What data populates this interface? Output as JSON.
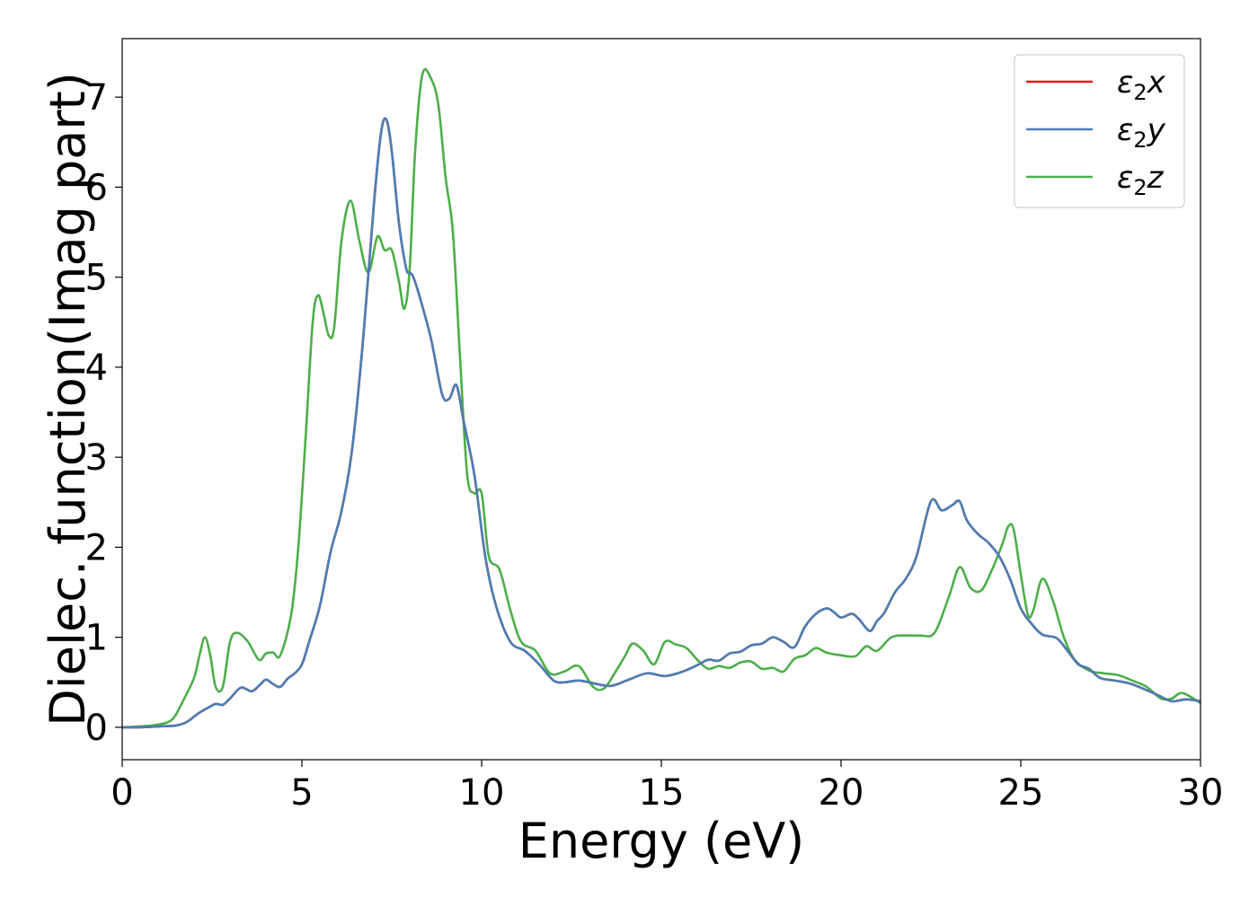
{
  "chart_data": {
    "type": "line",
    "xlabel": "Energy (eV)",
    "ylabel": "Dielec. function(Imag part)",
    "xlim": [
      0,
      30
    ],
    "ylim": [
      -0.36,
      7.65
    ],
    "xticks": [
      0,
      5,
      10,
      15,
      20,
      25,
      30
    ],
    "yticks": [
      0,
      1,
      2,
      3,
      4,
      5,
      6,
      7
    ],
    "grid": false,
    "legend_position": "top-right",
    "series": [
      {
        "name": "ε2x",
        "legend_main": "ε",
        "legend_sub": "2",
        "legend_suffix": "x",
        "color": "#e41a1c",
        "x": [
          0,
          0.5,
          1.0,
          1.5,
          1.8,
          2.1,
          2.4,
          2.6,
          2.8,
          3.0,
          3.3,
          3.6,
          3.8,
          4.0,
          4.2,
          4.4,
          4.6,
          4.8,
          5.0,
          5.2,
          5.5,
          5.8,
          6.1,
          6.4,
          6.7,
          7.0,
          7.2,
          7.35,
          7.5,
          7.7,
          7.9,
          8.0,
          8.1,
          8.3,
          8.6,
          8.9,
          9.1,
          9.3,
          9.5,
          9.8,
          10.1,
          10.4,
          10.8,
          11.2,
          11.6,
          12.0,
          12.3,
          12.7,
          13.1,
          13.6,
          14.1,
          14.6,
          15.1,
          15.6,
          16.0,
          16.3,
          16.6,
          16.9,
          17.2,
          17.5,
          17.8,
          18.1,
          18.4,
          18.7,
          19.0,
          19.3,
          19.6,
          19.8,
          20.0,
          20.3,
          20.5,
          20.8,
          21.0,
          21.2,
          21.5,
          21.8,
          22.1,
          22.5,
          22.8,
          23.1,
          23.3,
          23.5,
          23.8,
          24.1,
          24.4,
          24.7,
          25.0,
          25.3,
          25.6,
          26.0,
          26.3,
          26.6,
          26.9,
          27.2,
          27.6,
          28.0,
          28.4,
          28.8,
          29.2,
          29.6,
          30.0
        ],
        "values": [
          0.0,
          0.0,
          0.01,
          0.02,
          0.06,
          0.15,
          0.22,
          0.26,
          0.25,
          0.32,
          0.44,
          0.4,
          0.46,
          0.53,
          0.48,
          0.45,
          0.54,
          0.6,
          0.7,
          0.95,
          1.35,
          1.95,
          2.4,
          3.1,
          4.3,
          5.8,
          6.6,
          6.75,
          6.4,
          5.6,
          5.1,
          5.05,
          5.0,
          4.75,
          4.3,
          3.7,
          3.65,
          3.8,
          3.4,
          2.8,
          1.9,
          1.35,
          0.95,
          0.85,
          0.7,
          0.52,
          0.5,
          0.52,
          0.49,
          0.46,
          0.53,
          0.6,
          0.57,
          0.62,
          0.69,
          0.75,
          0.74,
          0.82,
          0.84,
          0.91,
          0.93,
          1.0,
          0.95,
          0.89,
          1.12,
          1.26,
          1.32,
          1.28,
          1.22,
          1.26,
          1.2,
          1.07,
          1.18,
          1.27,
          1.5,
          1.65,
          1.9,
          2.51,
          2.41,
          2.47,
          2.51,
          2.3,
          2.15,
          2.05,
          1.9,
          1.65,
          1.32,
          1.15,
          1.03,
          0.99,
          0.85,
          0.7,
          0.65,
          0.55,
          0.52,
          0.49,
          0.43,
          0.36,
          0.29,
          0.31,
          0.29
        ]
      },
      {
        "name": "ε2y",
        "legend_main": "ε",
        "legend_sub": "2",
        "legend_suffix": "y",
        "color": "#4a7fb5",
        "x": [
          0,
          0.5,
          1.0,
          1.5,
          1.8,
          2.1,
          2.4,
          2.6,
          2.8,
          3.0,
          3.3,
          3.6,
          3.8,
          4.0,
          4.2,
          4.4,
          4.6,
          4.8,
          5.0,
          5.2,
          5.5,
          5.8,
          6.1,
          6.4,
          6.7,
          7.0,
          7.2,
          7.35,
          7.5,
          7.7,
          7.9,
          8.0,
          8.1,
          8.3,
          8.6,
          8.9,
          9.1,
          9.3,
          9.5,
          9.8,
          10.1,
          10.4,
          10.8,
          11.2,
          11.6,
          12.0,
          12.3,
          12.7,
          13.1,
          13.6,
          14.1,
          14.6,
          15.1,
          15.6,
          16.0,
          16.3,
          16.6,
          16.9,
          17.2,
          17.5,
          17.8,
          18.1,
          18.4,
          18.7,
          19.0,
          19.3,
          19.6,
          19.8,
          20.0,
          20.3,
          20.5,
          20.8,
          21.0,
          21.2,
          21.5,
          21.8,
          22.1,
          22.5,
          22.8,
          23.1,
          23.3,
          23.5,
          23.8,
          24.1,
          24.4,
          24.7,
          25.0,
          25.3,
          25.6,
          26.0,
          26.3,
          26.6,
          26.9,
          27.2,
          27.6,
          28.0,
          28.4,
          28.8,
          29.2,
          29.6,
          30.0
        ],
        "values": [
          0.0,
          0.0,
          0.01,
          0.02,
          0.06,
          0.15,
          0.22,
          0.26,
          0.25,
          0.32,
          0.44,
          0.4,
          0.46,
          0.53,
          0.48,
          0.45,
          0.54,
          0.6,
          0.7,
          0.95,
          1.35,
          1.95,
          2.4,
          3.1,
          4.3,
          5.8,
          6.6,
          6.75,
          6.4,
          5.6,
          5.1,
          5.05,
          5.0,
          4.75,
          4.3,
          3.7,
          3.65,
          3.8,
          3.4,
          2.8,
          1.9,
          1.35,
          0.95,
          0.85,
          0.7,
          0.52,
          0.5,
          0.52,
          0.49,
          0.46,
          0.53,
          0.6,
          0.57,
          0.62,
          0.69,
          0.75,
          0.74,
          0.82,
          0.84,
          0.91,
          0.93,
          1.0,
          0.95,
          0.89,
          1.12,
          1.26,
          1.32,
          1.28,
          1.22,
          1.26,
          1.2,
          1.07,
          1.18,
          1.27,
          1.5,
          1.65,
          1.9,
          2.51,
          2.41,
          2.47,
          2.51,
          2.3,
          2.15,
          2.05,
          1.9,
          1.65,
          1.32,
          1.15,
          1.03,
          0.99,
          0.85,
          0.7,
          0.65,
          0.55,
          0.52,
          0.49,
          0.43,
          0.36,
          0.29,
          0.31,
          0.29
        ]
      },
      {
        "name": "ε2z",
        "legend_main": "ε",
        "legend_sub": "2",
        "legend_suffix": "z",
        "color": "#4daf4a",
        "x": [
          0,
          0.5,
          1.0,
          1.4,
          1.7,
          2.0,
          2.15,
          2.3,
          2.45,
          2.6,
          2.8,
          3.0,
          3.2,
          3.5,
          3.8,
          4.0,
          4.2,
          4.4,
          4.7,
          4.9,
          5.1,
          5.3,
          5.45,
          5.6,
          5.75,
          5.9,
          6.1,
          6.35,
          6.6,
          6.85,
          7.1,
          7.3,
          7.5,
          7.7,
          7.85,
          8.0,
          8.15,
          8.35,
          8.6,
          8.8,
          9.0,
          9.2,
          9.4,
          9.6,
          9.8,
          10.0,
          10.2,
          10.5,
          10.8,
          11.1,
          11.5,
          11.9,
          12.3,
          12.7,
          13.1,
          13.4,
          13.7,
          14.0,
          14.2,
          14.5,
          14.8,
          15.1,
          15.4,
          15.7,
          16.0,
          16.3,
          16.6,
          16.9,
          17.2,
          17.5,
          17.8,
          18.1,
          18.4,
          18.7,
          19.0,
          19.3,
          19.6,
          20.0,
          20.4,
          20.7,
          21.0,
          21.4,
          21.8,
          22.2,
          22.6,
          23.0,
          23.3,
          23.6,
          23.9,
          24.2,
          24.5,
          24.65,
          24.8,
          25.0,
          25.2,
          25.35,
          25.6,
          25.9,
          26.2,
          26.5,
          26.9,
          27.3,
          27.7,
          28.1,
          28.5,
          28.9,
          29.2,
          29.5,
          30.0
        ],
        "values": [
          0.0,
          0.01,
          0.03,
          0.09,
          0.3,
          0.55,
          0.8,
          1.0,
          0.8,
          0.45,
          0.45,
          0.95,
          1.05,
          0.95,
          0.75,
          0.82,
          0.83,
          0.8,
          1.25,
          2.0,
          3.2,
          4.5,
          4.8,
          4.6,
          4.35,
          4.45,
          5.4,
          5.85,
          5.4,
          5.05,
          5.45,
          5.3,
          5.3,
          4.95,
          4.65,
          5.1,
          6.4,
          7.25,
          7.2,
          6.9,
          6.1,
          5.5,
          4.1,
          2.8,
          2.6,
          2.6,
          1.9,
          1.75,
          1.3,
          0.95,
          0.85,
          0.6,
          0.62,
          0.68,
          0.45,
          0.43,
          0.6,
          0.8,
          0.93,
          0.85,
          0.7,
          0.95,
          0.92,
          0.88,
          0.75,
          0.65,
          0.68,
          0.66,
          0.72,
          0.73,
          0.65,
          0.66,
          0.62,
          0.76,
          0.8,
          0.88,
          0.83,
          0.8,
          0.79,
          0.9,
          0.85,
          1.0,
          1.02,
          1.02,
          1.05,
          1.45,
          1.78,
          1.55,
          1.52,
          1.75,
          2.05,
          2.23,
          2.2,
          1.7,
          1.25,
          1.3,
          1.65,
          1.4,
          1.0,
          0.75,
          0.63,
          0.6,
          0.58,
          0.52,
          0.45,
          0.32,
          0.32,
          0.38,
          0.27
        ]
      }
    ]
  }
}
